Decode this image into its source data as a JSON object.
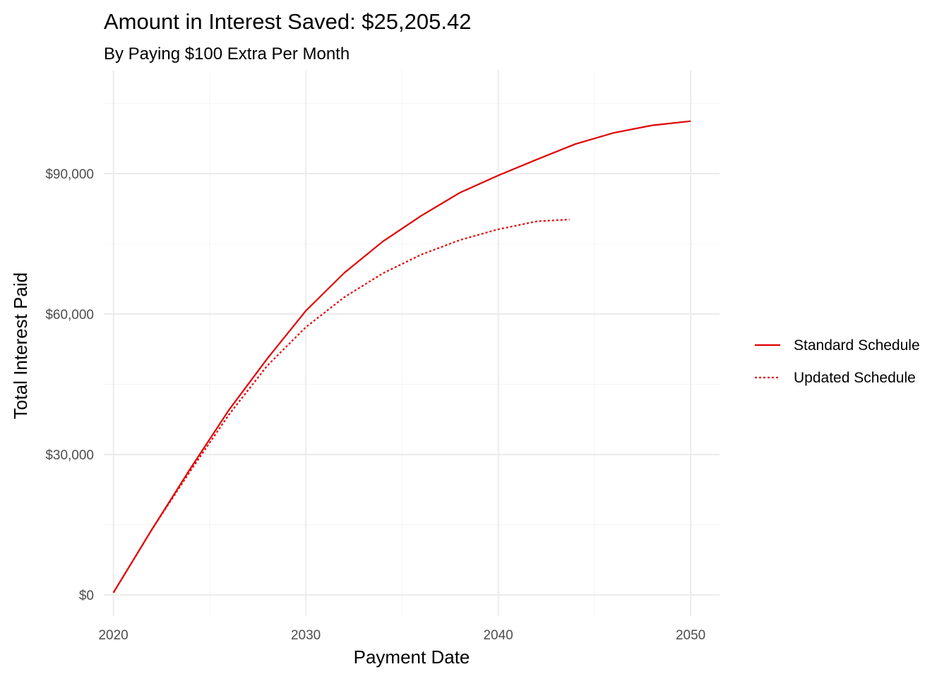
{
  "chart_data": {
    "type": "line",
    "title": "Amount in Interest Saved: $25,205.42",
    "subtitle": "By Paying $100 Extra Per Month",
    "xlabel": "Payment Date",
    "ylabel": "Total Interest Paid",
    "xlim": [
      2019.5,
      2051.5
    ],
    "ylim": [
      -4500,
      112000
    ],
    "x_ticks": [
      2020,
      2030,
      2040,
      2050
    ],
    "x_tick_labels": [
      "2020",
      "2030",
      "2040",
      "2050"
    ],
    "x_minor_ticks": [
      2025,
      2035,
      2045
    ],
    "y_ticks": [
      0,
      30000,
      60000,
      90000
    ],
    "y_tick_labels": [
      "$0",
      "$30,000",
      "$60,000",
      "$90,000"
    ],
    "y_minor_ticks": [
      15000,
      45000,
      75000,
      105000
    ],
    "grid": true,
    "legend_position": "right",
    "colors": {
      "line": "#e00000",
      "grid_major": "#ebebeb",
      "grid_minor": "#f5f5f5",
      "tick_text": "#4d4d4d",
      "title_text": "#000000"
    },
    "series": [
      {
        "name": "Standard Schedule",
        "linetype": "solid",
        "x": [
          2020.0,
          2022,
          2024,
          2026,
          2028,
          2030,
          2032,
          2034,
          2036,
          2038,
          2040,
          2042,
          2044,
          2046,
          2048,
          2050.0
        ],
        "y": [
          500,
          14000,
          27000,
          39500,
          50500,
          60700,
          68800,
          75500,
          81000,
          85900,
          89600,
          93000,
          96300,
          98700,
          100300,
          101200
        ]
      },
      {
        "name": "Updated Schedule",
        "linetype": "dotted",
        "x": [
          2020.0,
          2022,
          2024,
          2026,
          2028,
          2030,
          2032,
          2034,
          2036,
          2038,
          2040,
          2042,
          2043.7
        ],
        "y": [
          500,
          14000,
          26500,
          38500,
          49000,
          57200,
          63600,
          68700,
          72700,
          75800,
          78100,
          79800,
          80200
        ]
      }
    ]
  }
}
